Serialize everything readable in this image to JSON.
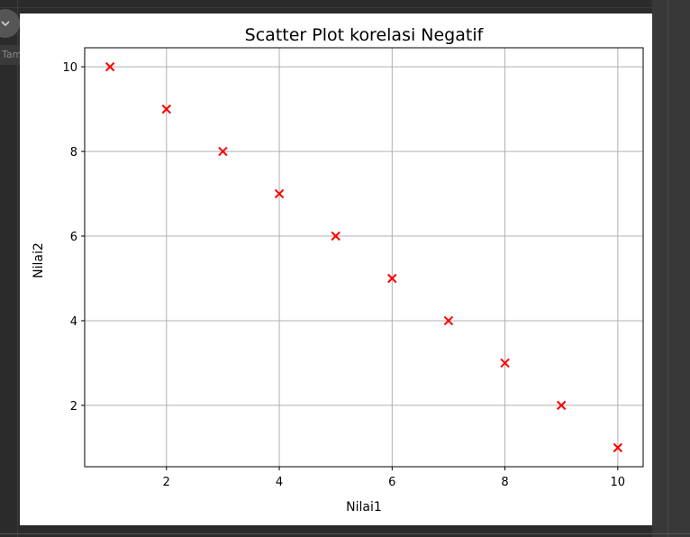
{
  "output_tag": "Tampilkan output",
  "chart_data": {
    "type": "scatter",
    "title": "Scatter Plot korelasi Negatif",
    "xlabel": "Nilai1",
    "ylabel": "Nilai2",
    "x": [
      1,
      2,
      3,
      4,
      5,
      6,
      7,
      8,
      9,
      10
    ],
    "y": [
      10,
      9,
      8,
      7,
      6,
      5,
      4,
      3,
      2,
      1
    ],
    "xlim": [
      0.55,
      10.45
    ],
    "ylim": [
      0.55,
      10.45
    ],
    "xticks": [
      2,
      4,
      6,
      8,
      10
    ],
    "yticks": [
      2,
      4,
      6,
      8,
      10
    ],
    "marker": "x",
    "color": "#ff0000",
    "grid": true
  }
}
